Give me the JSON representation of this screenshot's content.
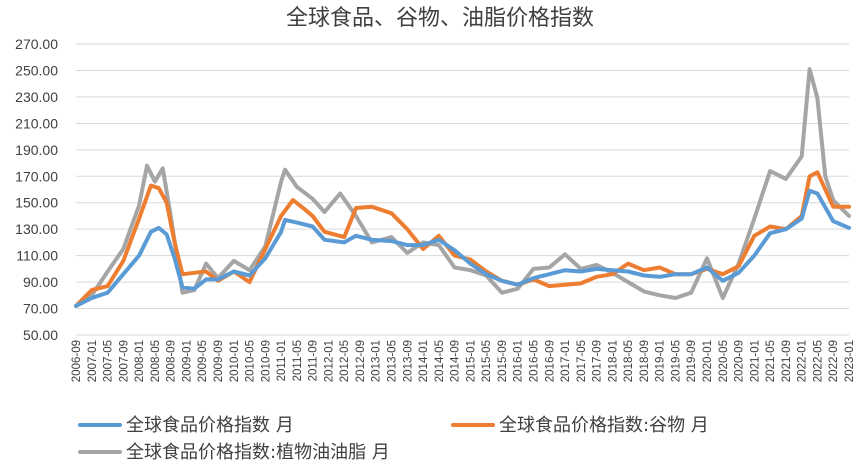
{
  "chart_data": {
    "type": "line",
    "title": "全球食品、谷物、油脂价格指数",
    "xlabel": "",
    "ylabel": "",
    "ylim": [
      50,
      270
    ],
    "yticks": [
      "50.00",
      "70.00",
      "90.00",
      "110.00",
      "130.00",
      "150.00",
      "170.00",
      "190.00",
      "210.00",
      "230.00",
      "250.00",
      "270.00"
    ],
    "grid": true,
    "legend_position": "bottom",
    "x_start": "2006-09",
    "x_end": "2023-01",
    "x_tick_labels": [
      "2006-09",
      "2007-01",
      "2007-05",
      "2007-09",
      "2008-01",
      "2008-05",
      "2008-09",
      "2009-01",
      "2009-05",
      "2009-09",
      "2010-01",
      "2010-05",
      "2010-09",
      "2011-01",
      "2011-05",
      "2011-09",
      "2012-01",
      "2012-05",
      "2012-09",
      "2013-01",
      "2013-05",
      "2013-09",
      "2014-01",
      "2014-05",
      "2014-09",
      "2015-01",
      "2015-05",
      "2015-09",
      "2016-01",
      "2016-05",
      "2016-09",
      "2017-01",
      "2017-05",
      "2017-09",
      "2018-01",
      "2018-05",
      "2018-09",
      "2019-01",
      "2019-05",
      "2019-09",
      "2020-01",
      "2020-05",
      "2020-09",
      "2021-01",
      "2021-05",
      "2021-09",
      "2022-01",
      "2022-05",
      "2022-09",
      "2023-01"
    ],
    "series": [
      {
        "name": "全球食品价格指数 月",
        "color": "#5b9bd5",
        "points": [
          [
            "2006-09",
            72
          ],
          [
            "2007-01",
            78
          ],
          [
            "2007-05",
            82
          ],
          [
            "2007-09",
            96
          ],
          [
            "2008-01",
            110
          ],
          [
            "2008-04",
            128
          ],
          [
            "2008-06",
            131
          ],
          [
            "2008-08",
            126
          ],
          [
            "2008-10",
            108
          ],
          [
            "2008-12",
            86
          ],
          [
            "2009-03",
            85
          ],
          [
            "2009-06",
            92
          ],
          [
            "2009-09",
            92
          ],
          [
            "2010-01",
            98
          ],
          [
            "2010-05",
            95
          ],
          [
            "2010-09",
            108
          ],
          [
            "2011-01",
            128
          ],
          [
            "2011-02",
            137
          ],
          [
            "2011-05",
            135
          ],
          [
            "2011-09",
            132
          ],
          [
            "2011-12",
            122
          ],
          [
            "2012-05",
            120
          ],
          [
            "2012-08",
            125
          ],
          [
            "2012-12",
            122
          ],
          [
            "2013-05",
            121
          ],
          [
            "2013-09",
            118
          ],
          [
            "2014-01",
            118
          ],
          [
            "2014-05",
            122
          ],
          [
            "2014-09",
            114
          ],
          [
            "2015-01",
            104
          ],
          [
            "2015-05",
            96
          ],
          [
            "2015-09",
            91
          ],
          [
            "2016-01",
            88
          ],
          [
            "2016-05",
            93
          ],
          [
            "2016-09",
            96
          ],
          [
            "2017-01",
            99
          ],
          [
            "2017-05",
            98
          ],
          [
            "2017-09",
            100
          ],
          [
            "2018-01",
            99
          ],
          [
            "2018-05",
            98
          ],
          [
            "2018-09",
            95
          ],
          [
            "2019-01",
            94
          ],
          [
            "2019-05",
            96
          ],
          [
            "2019-09",
            96
          ],
          [
            "2020-01",
            101
          ],
          [
            "2020-05",
            91
          ],
          [
            "2020-09",
            97
          ],
          [
            "2021-01",
            110
          ],
          [
            "2021-05",
            127
          ],
          [
            "2021-09",
            130
          ],
          [
            "2022-01",
            138
          ],
          [
            "2022-03",
            159
          ],
          [
            "2022-05",
            157
          ],
          [
            "2022-09",
            136
          ],
          [
            "2023-01",
            131
          ]
        ]
      },
      {
        "name": "全球食品价格指数:谷物 月",
        "color": "#ed7d31",
        "points": [
          [
            "2006-09",
            72
          ],
          [
            "2007-01",
            84
          ],
          [
            "2007-05",
            87
          ],
          [
            "2007-09",
            106
          ],
          [
            "2008-01",
            138
          ],
          [
            "2008-04",
            163
          ],
          [
            "2008-06",
            161
          ],
          [
            "2008-08",
            150
          ],
          [
            "2008-10",
            120
          ],
          [
            "2008-12",
            96
          ],
          [
            "2009-03",
            97
          ],
          [
            "2009-06",
            98
          ],
          [
            "2009-09",
            91
          ],
          [
            "2010-01",
            98
          ],
          [
            "2010-05",
            90
          ],
          [
            "2010-09",
            115
          ],
          [
            "2011-01",
            140
          ],
          [
            "2011-04",
            152
          ],
          [
            "2011-07",
            145
          ],
          [
            "2011-09",
            140
          ],
          [
            "2011-12",
            128
          ],
          [
            "2012-05",
            124
          ],
          [
            "2012-08",
            146
          ],
          [
            "2012-12",
            147
          ],
          [
            "2013-05",
            142
          ],
          [
            "2013-09",
            130
          ],
          [
            "2014-01",
            115
          ],
          [
            "2014-05",
            125
          ],
          [
            "2014-09",
            110
          ],
          [
            "2015-01",
            107
          ],
          [
            "2015-05",
            98
          ],
          [
            "2015-09",
            91
          ],
          [
            "2016-01",
            88
          ],
          [
            "2016-05",
            92
          ],
          [
            "2016-09",
            87
          ],
          [
            "2017-01",
            88
          ],
          [
            "2017-05",
            89
          ],
          [
            "2017-09",
            94
          ],
          [
            "2018-01",
            96
          ],
          [
            "2018-05",
            104
          ],
          [
            "2018-09",
            99
          ],
          [
            "2019-01",
            101
          ],
          [
            "2019-05",
            96
          ],
          [
            "2019-09",
            96
          ],
          [
            "2020-01",
            100
          ],
          [
            "2020-05",
            96
          ],
          [
            "2020-09",
            102
          ],
          [
            "2021-01",
            125
          ],
          [
            "2021-05",
            132
          ],
          [
            "2021-09",
            130
          ],
          [
            "2022-01",
            140
          ],
          [
            "2022-03",
            170
          ],
          [
            "2022-05",
            173
          ],
          [
            "2022-09",
            147
          ],
          [
            "2023-01",
            147
          ]
        ]
      },
      {
        "name": "全球食品价格指数:植物油油脂 月",
        "color": "#a5a5a5",
        "points": [
          [
            "2006-09",
            72
          ],
          [
            "2007-01",
            80
          ],
          [
            "2007-05",
            98
          ],
          [
            "2007-09",
            115
          ],
          [
            "2008-01",
            148
          ],
          [
            "2008-03",
            178
          ],
          [
            "2008-05",
            166
          ],
          [
            "2008-07",
            176
          ],
          [
            "2008-09",
            140
          ],
          [
            "2008-12",
            82
          ],
          [
            "2009-03",
            84
          ],
          [
            "2009-06",
            104
          ],
          [
            "2009-09",
            93
          ],
          [
            "2010-01",
            106
          ],
          [
            "2010-05",
            99
          ],
          [
            "2010-09",
            117
          ],
          [
            "2011-01",
            166
          ],
          [
            "2011-02",
            175
          ],
          [
            "2011-05",
            162
          ],
          [
            "2011-09",
            153
          ],
          [
            "2011-12",
            143
          ],
          [
            "2012-04",
            157
          ],
          [
            "2012-08",
            140
          ],
          [
            "2012-12",
            120
          ],
          [
            "2013-05",
            124
          ],
          [
            "2013-09",
            112
          ],
          [
            "2014-01",
            120
          ],
          [
            "2014-05",
            118
          ],
          [
            "2014-09",
            101
          ],
          [
            "2015-01",
            99
          ],
          [
            "2015-05",
            95
          ],
          [
            "2015-09",
            82
          ],
          [
            "2016-01",
            85
          ],
          [
            "2016-05",
            100
          ],
          [
            "2016-09",
            101
          ],
          [
            "2017-01",
            111
          ],
          [
            "2017-05",
            100
          ],
          [
            "2017-09",
            103
          ],
          [
            "2018-01",
            97
          ],
          [
            "2018-05",
            90
          ],
          [
            "2018-09",
            83
          ],
          [
            "2019-01",
            80
          ],
          [
            "2019-05",
            78
          ],
          [
            "2019-09",
            82
          ],
          [
            "2020-01",
            108
          ],
          [
            "2020-05",
            78
          ],
          [
            "2020-09",
            104
          ],
          [
            "2021-01",
            138
          ],
          [
            "2021-05",
            174
          ],
          [
            "2021-09",
            168
          ],
          [
            "2022-01",
            185
          ],
          [
            "2022-03",
            251
          ],
          [
            "2022-05",
            229
          ],
          [
            "2022-07",
            170
          ],
          [
            "2022-09",
            152
          ],
          [
            "2023-01",
            140
          ]
        ]
      }
    ]
  }
}
